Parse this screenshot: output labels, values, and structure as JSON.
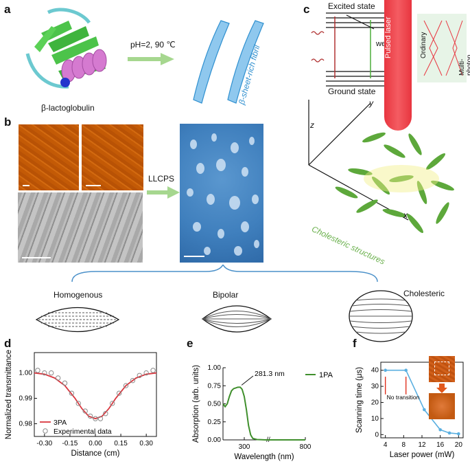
{
  "panels": {
    "a": {
      "letter": "a",
      "protein_label": "β-lactoglobulin",
      "condition": "pH=2, 90 ℃",
      "fibril_label": "β-sheet-rich fibril"
    },
    "b": {
      "letter": "b",
      "process": "LLCPS",
      "droplet_types": [
        "Homogenous",
        "Bipolar",
        "Cholesteric"
      ]
    },
    "c": {
      "letter": "c",
      "excited": "Excited state",
      "ground": "Ground state",
      "weak": "weak",
      "laser": "Pulsed laser",
      "ordinary": "Ordinary",
      "multiphoton": "Multi-photon",
      "axis_x": "x",
      "axis_y": "y",
      "axis_z": "z",
      "structures": "Cholesteric structures"
    },
    "d": {
      "letter": "d"
    },
    "e": {
      "letter": "e"
    },
    "f": {
      "letter": "f"
    }
  },
  "chart_data": [
    {
      "type": "line",
      "panel": "d",
      "xlabel": "Distance (cm)",
      "ylabel": "Normalized transmittance",
      "xlim": [
        -0.36,
        0.36
      ],
      "ylim": [
        0.975,
        1.008
      ],
      "xticks": [
        "-0.30",
        "-0.15",
        "0.00",
        "0.15",
        "0.30"
      ],
      "yticks": [
        "0.98",
        "0.99",
        "1.00"
      ],
      "legend": [
        "3PA",
        "Experimental data"
      ],
      "colors": {
        "fit": "#d9363e",
        "data": "#8a8a8a"
      },
      "series": [
        {
          "name": "3PA",
          "x": [
            -0.36,
            -0.3,
            -0.24,
            -0.18,
            -0.12,
            -0.08,
            -0.04,
            0.0,
            0.04,
            0.08,
            0.12,
            0.18,
            0.24,
            0.3,
            0.36
          ],
          "y": [
            1.0,
            0.9995,
            0.998,
            0.995,
            0.99,
            0.986,
            0.983,
            0.982,
            0.983,
            0.986,
            0.99,
            0.995,
            0.998,
            0.9995,
            1.0
          ]
        },
        {
          "name": "Experimental data",
          "x": [
            -0.34,
            -0.3,
            -0.26,
            -0.22,
            -0.18,
            -0.14,
            -0.1,
            -0.06,
            -0.03,
            0.0,
            0.03,
            0.06,
            0.1,
            0.14,
            0.18,
            0.22,
            0.26,
            0.3,
            0.34
          ],
          "y": [
            1.001,
            1.0,
            1.0,
            0.998,
            0.996,
            0.992,
            0.988,
            0.985,
            0.983,
            0.982,
            0.982,
            0.984,
            0.988,
            0.992,
            0.995,
            0.997,
            0.999,
            1.0,
            1.001
          ]
        }
      ]
    },
    {
      "type": "line",
      "panel": "e",
      "xlabel": "Wavelength (nm)",
      "ylabel": "Absorption (arb. units)",
      "xticks": [
        "300",
        "800"
      ],
      "yticks": [
        "0.00",
        "0.25",
        "0.50",
        "0.75",
        "1.00"
      ],
      "ylim": [
        0,
        1.0
      ],
      "annotation": "281.3 nm",
      "legend": [
        "1PA"
      ],
      "colors": {
        "line": "#3f8f2c"
      },
      "series": [
        {
          "name": "1PA",
          "x": [
            200,
            210,
            220,
            230,
            240,
            250,
            260,
            270,
            281,
            290,
            300,
            310,
            320,
            330,
            340,
            360,
            400,
            500,
            600,
            700,
            800
          ],
          "y": [
            0.5,
            0.46,
            0.5,
            0.6,
            0.68,
            0.71,
            0.72,
            0.73,
            0.73,
            0.7,
            0.6,
            0.42,
            0.2,
            0.07,
            0.02,
            0.005,
            0.0,
            0.0,
            0.0,
            0.0,
            0.0
          ]
        }
      ]
    },
    {
      "type": "line",
      "panel": "f",
      "xlabel": "Laser power (mW)",
      "ylabel": "Scanning time (μs)",
      "xlim": [
        3,
        21
      ],
      "ylim": [
        -2,
        45
      ],
      "xticks": [
        "4",
        "8",
        "12",
        "16",
        "20"
      ],
      "yticks": [
        "0",
        "10",
        "20",
        "30",
        "40"
      ],
      "annotation": "No transition",
      "colors": {
        "line": "#5aafe0"
      },
      "series": [
        {
          "name": "",
          "x": [
            4,
            8.5,
            12.5,
            16,
            18,
            20
          ],
          "y": [
            40,
            40,
            15.5,
            3,
            1,
            0.5
          ]
        }
      ]
    }
  ]
}
